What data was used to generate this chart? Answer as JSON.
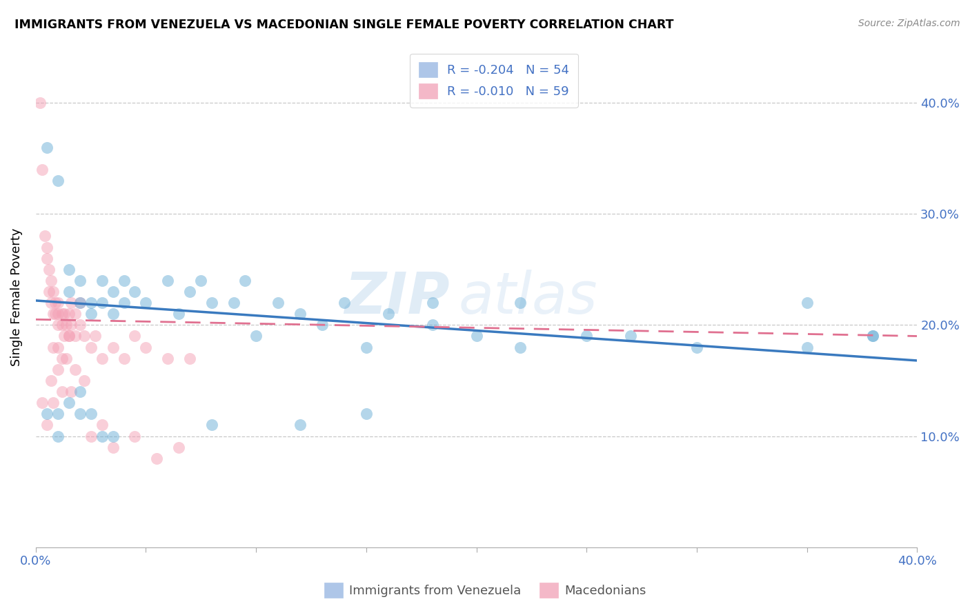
{
  "title": "IMMIGRANTS FROM VENEZUELA VS MACEDONIAN SINGLE FEMALE POVERTY CORRELATION CHART",
  "source": "Source: ZipAtlas.com",
  "ylabel": "Single Female Poverty",
  "ytick_vals": [
    0.1,
    0.2,
    0.3,
    0.4
  ],
  "xlim": [
    0.0,
    0.4
  ],
  "ylim": [
    0.0,
    0.45
  ],
  "legend_entries": [
    {
      "label": "R = -0.204   N = 54",
      "color": "#aec6e8"
    },
    {
      "label": "R = -0.010   N = 59",
      "color": "#f4b8c8"
    }
  ],
  "legend_bottom": [
    "Immigrants from Venezuela",
    "Macedonians"
  ],
  "blue_scatter_x": [
    0.005,
    0.01,
    0.015,
    0.015,
    0.02,
    0.02,
    0.025,
    0.025,
    0.03,
    0.03,
    0.035,
    0.035,
    0.04,
    0.04,
    0.045,
    0.05,
    0.06,
    0.065,
    0.07,
    0.075,
    0.08,
    0.09,
    0.095,
    0.1,
    0.11,
    0.12,
    0.13,
    0.14,
    0.15,
    0.16,
    0.18,
    0.2,
    0.22,
    0.25,
    0.27,
    0.3,
    0.35,
    0.38,
    0.005,
    0.01,
    0.015,
    0.02,
    0.025,
    0.03,
    0.035,
    0.18,
    0.22,
    0.35,
    0.38,
    0.01,
    0.02,
    0.08,
    0.12,
    0.15
  ],
  "blue_scatter_y": [
    0.36,
    0.33,
    0.23,
    0.25,
    0.22,
    0.24,
    0.21,
    0.22,
    0.22,
    0.24,
    0.21,
    0.23,
    0.22,
    0.24,
    0.23,
    0.22,
    0.24,
    0.21,
    0.23,
    0.24,
    0.22,
    0.22,
    0.24,
    0.19,
    0.22,
    0.21,
    0.2,
    0.22,
    0.18,
    0.21,
    0.2,
    0.19,
    0.22,
    0.19,
    0.19,
    0.18,
    0.22,
    0.19,
    0.12,
    0.12,
    0.13,
    0.14,
    0.12,
    0.1,
    0.1,
    0.22,
    0.18,
    0.18,
    0.19,
    0.1,
    0.12,
    0.11,
    0.11,
    0.12
  ],
  "pink_scatter_x": [
    0.002,
    0.003,
    0.004,
    0.005,
    0.005,
    0.006,
    0.006,
    0.007,
    0.007,
    0.008,
    0.008,
    0.009,
    0.009,
    0.01,
    0.01,
    0.01,
    0.012,
    0.012,
    0.013,
    0.013,
    0.014,
    0.015,
    0.015,
    0.016,
    0.016,
    0.018,
    0.018,
    0.02,
    0.02,
    0.022,
    0.025,
    0.027,
    0.03,
    0.035,
    0.04,
    0.045,
    0.05,
    0.06,
    0.07,
    0.003,
    0.005,
    0.007,
    0.008,
    0.01,
    0.012,
    0.014,
    0.016,
    0.018,
    0.022,
    0.025,
    0.03,
    0.035,
    0.045,
    0.055,
    0.065,
    0.008,
    0.01,
    0.012,
    0.015
  ],
  "pink_scatter_y": [
    0.4,
    0.34,
    0.28,
    0.27,
    0.26,
    0.23,
    0.25,
    0.22,
    0.24,
    0.21,
    0.23,
    0.21,
    0.22,
    0.2,
    0.21,
    0.22,
    0.2,
    0.21,
    0.19,
    0.21,
    0.2,
    0.19,
    0.21,
    0.2,
    0.22,
    0.19,
    0.21,
    0.2,
    0.22,
    0.19,
    0.18,
    0.19,
    0.17,
    0.18,
    0.17,
    0.19,
    0.18,
    0.17,
    0.17,
    0.13,
    0.11,
    0.15,
    0.13,
    0.16,
    0.14,
    0.17,
    0.14,
    0.16,
    0.15,
    0.1,
    0.11,
    0.09,
    0.1,
    0.08,
    0.09,
    0.18,
    0.18,
    0.17,
    0.19
  ],
  "blue_line_x": [
    0.0,
    0.4
  ],
  "blue_line_y": [
    0.222,
    0.168
  ],
  "pink_line_x": [
    0.0,
    0.4
  ],
  "pink_line_y": [
    0.205,
    0.19
  ],
  "blue_color": "#6aaed6",
  "pink_color": "#f4a0b5",
  "blue_line_color": "#3a7abf",
  "pink_line_color": "#e07090",
  "grid_color": "#c8c8c8",
  "xtick_positions": [
    0.0,
    0.05,
    0.1,
    0.15,
    0.2,
    0.25,
    0.3,
    0.35,
    0.4
  ],
  "watermark_zip": "ZIP",
  "watermark_atlas": "atlas",
  "background_color": "#ffffff"
}
